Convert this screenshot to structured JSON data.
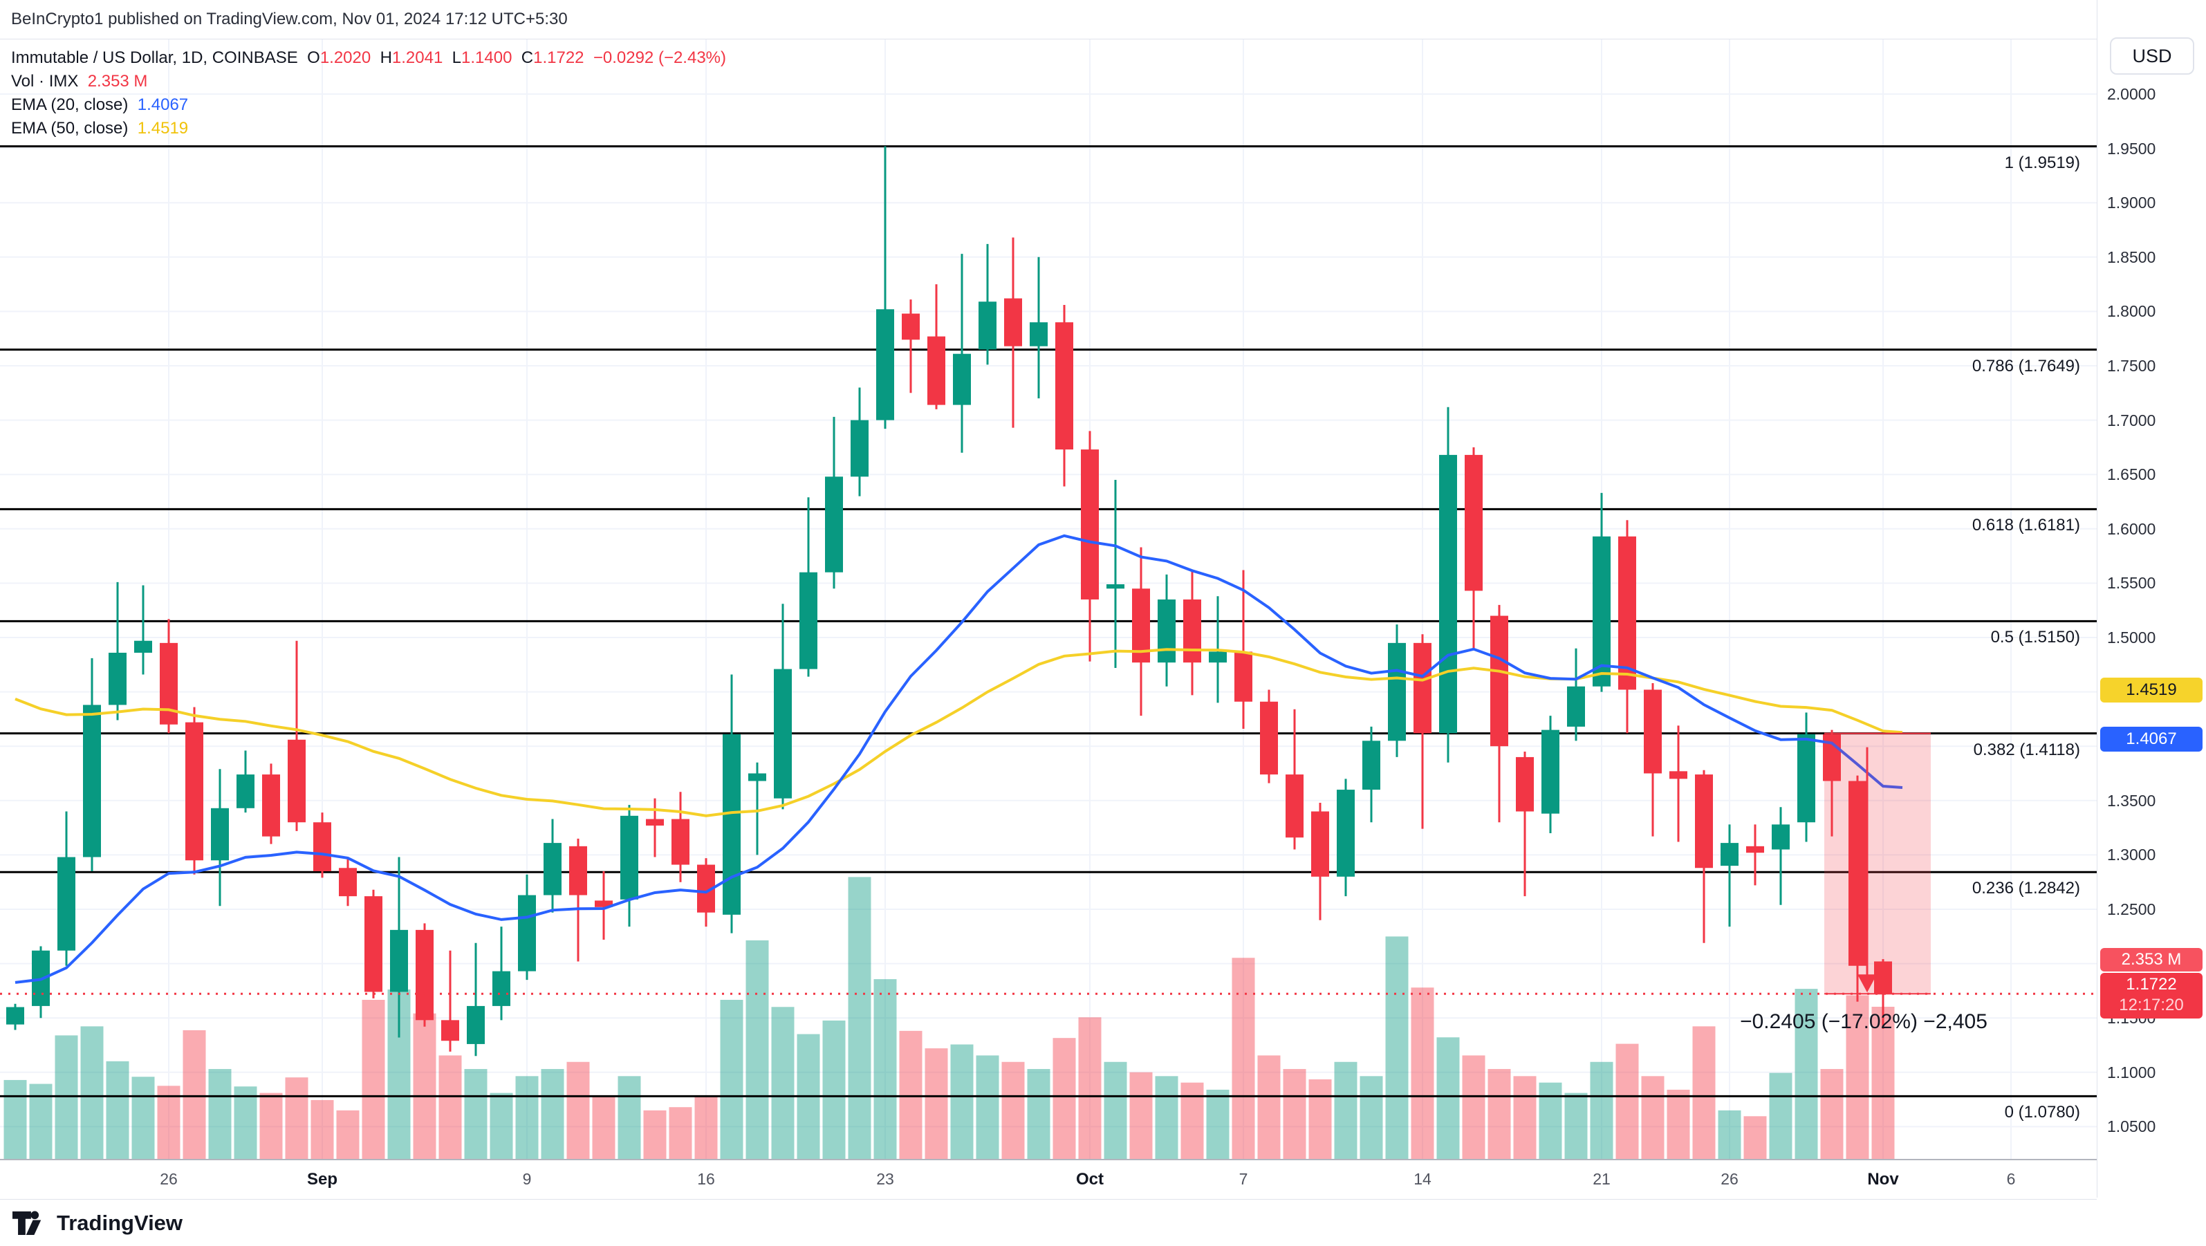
{
  "header": {
    "attribution": "BeInCrypto1 published on TradingView.com, Nov 01, 2024 17:12 UTC+5:30"
  },
  "legend": {
    "symbol": "Immutable / US Dollar, 1D, COINBASE",
    "o_label": "O",
    "o": "1.2020",
    "h_label": "H",
    "h": "1.2041",
    "l_label": "L",
    "l": "1.1400",
    "c_label": "C",
    "c": "1.1722",
    "change": "−0.0292 (−2.43%)",
    "vol_label": "Vol · IMX",
    "vol_value": "2.353 M",
    "ema20_label": "EMA (20, close)",
    "ema20_value": "1.4067",
    "ema50_label": "EMA (50, close)",
    "ema50_value": "1.4519"
  },
  "right_axis": {
    "currency_button": "USD",
    "ticks": [
      "2.0000",
      "1.9500",
      "1.9000",
      "1.8500",
      "1.8000",
      "1.7500",
      "1.7000",
      "1.6500",
      "1.6000",
      "1.5500",
      "1.5000",
      "1.4500",
      "1.4000",
      "1.3500",
      "1.3000",
      "1.2500",
      "1.2000",
      "1.1500",
      "1.1000",
      "1.0500"
    ],
    "badges": {
      "ema50": {
        "text": "1.4519",
        "price": 1.4519,
        "color": "#F6D32B"
      },
      "ema20": {
        "text": "1.4067",
        "price": 1.4067,
        "color": "#2962FF"
      },
      "volume": {
        "text": "2.353 M",
        "color": "#F7525F"
      },
      "last_price": {
        "text": "1.1722",
        "price": 1.1722,
        "countdown": "12:17:20",
        "color": "#F23645"
      }
    }
  },
  "bottom_axis": {
    "ticks": [
      {
        "label": "26",
        "day": 6,
        "bold": false
      },
      {
        "label": "Sep",
        "day": 12,
        "bold": true
      },
      {
        "label": "9",
        "day": 20,
        "bold": false
      },
      {
        "label": "16",
        "day": 27,
        "bold": false
      },
      {
        "label": "23",
        "day": 34,
        "bold": false
      },
      {
        "label": "Oct",
        "day": 42,
        "bold": true
      },
      {
        "label": "7",
        "day": 48,
        "bold": false
      },
      {
        "label": "14",
        "day": 55,
        "bold": false
      },
      {
        "label": "21",
        "day": 62,
        "bold": false
      },
      {
        "label": "26",
        "day": 67,
        "bold": false
      },
      {
        "label": "Nov",
        "day": 73,
        "bold": true
      },
      {
        "label": "6",
        "day": 78,
        "bold": false
      }
    ]
  },
  "logo": {
    "text": "TradingView"
  },
  "chart_data": {
    "type": "candlestick+volume",
    "title": "Immutable / US Dollar, 1D, COINBASE",
    "price_axis": {
      "min_tick": 1.05,
      "max_tick": 2.0,
      "step": 0.05,
      "scale": "linear"
    },
    "grid": true,
    "colors": {
      "up": "#089981",
      "down": "#F23645",
      "vol_up": "rgba(8,153,129,0.42)",
      "vol_down": "rgba(242,54,69,0.42)",
      "ema20": "#2962FF",
      "ema50": "#F5D028",
      "fib_line": "#000000",
      "grid": "#F0F3FA",
      "measure_fill": "rgba(242,54,69,0.22)",
      "last_price_line": "#F23645"
    },
    "ema": {
      "ema20_period": 20,
      "ema20_seed": 1.185,
      "ema50_period": 50,
      "ema50_seed": 1.455
    },
    "fib_levels": [
      {
        "level": "1",
        "price": 1.9519
      },
      {
        "level": "0.786",
        "price": 1.7649
      },
      {
        "level": "0.618",
        "price": 1.6181
      },
      {
        "level": "0.5",
        "price": 1.515
      },
      {
        "level": "0.382",
        "price": 1.4118
      },
      {
        "level": "0.236",
        "price": 1.2842
      },
      {
        "level": "0",
        "price": 1.078
      }
    ],
    "last_price": 1.1722,
    "measure": {
      "from_price": 1.4118,
      "to_price": 1.1722,
      "label": "−0.2405 (−17.02%) −2,405"
    },
    "dates": [
      "2024-08-20",
      "2024-08-21",
      "2024-08-22",
      "2024-08-23",
      "2024-08-24",
      "2024-08-25",
      "2024-08-26",
      "2024-08-27",
      "2024-08-28",
      "2024-08-29",
      "2024-08-30",
      "2024-08-31",
      "2024-09-01",
      "2024-09-02",
      "2024-09-03",
      "2024-09-04",
      "2024-09-05",
      "2024-09-06",
      "2024-09-07",
      "2024-09-08",
      "2024-09-09",
      "2024-09-10",
      "2024-09-11",
      "2024-09-12",
      "2024-09-13",
      "2024-09-14",
      "2024-09-15",
      "2024-09-16",
      "2024-09-17",
      "2024-09-18",
      "2024-09-19",
      "2024-09-20",
      "2024-09-21",
      "2024-09-22",
      "2024-09-23",
      "2024-09-24",
      "2024-09-25",
      "2024-09-26",
      "2024-09-27",
      "2024-09-28",
      "2024-09-29",
      "2024-09-30",
      "2024-10-01",
      "2024-10-02",
      "2024-10-03",
      "2024-10-04",
      "2024-10-05",
      "2024-10-06",
      "2024-10-07",
      "2024-10-08",
      "2024-10-09",
      "2024-10-10",
      "2024-10-11",
      "2024-10-12",
      "2024-10-13",
      "2024-10-14",
      "2024-10-15",
      "2024-10-16",
      "2024-10-17",
      "2024-10-18",
      "2024-10-19",
      "2024-10-20",
      "2024-10-21",
      "2024-10-22",
      "2024-10-23",
      "2024-10-24",
      "2024-10-25",
      "2024-10-26",
      "2024-10-27",
      "2024-10-28",
      "2024-10-29",
      "2024-10-30",
      "2024-10-31",
      "2024-11-01"
    ],
    "ohlc": [
      [
        1.144,
        1.163,
        1.139,
        1.16
      ],
      [
        1.161,
        1.216,
        1.15,
        1.212
      ],
      [
        1.212,
        1.34,
        1.198,
        1.298
      ],
      [
        1.298,
        1.481,
        1.285,
        1.438
      ],
      [
        1.438,
        1.551,
        1.424,
        1.486
      ],
      [
        1.486,
        1.548,
        1.466,
        1.497
      ],
      [
        1.495,
        1.517,
        1.412,
        1.42
      ],
      [
        1.422,
        1.436,
        1.282,
        1.295
      ],
      [
        1.295,
        1.379,
        1.253,
        1.343
      ],
      [
        1.343,
        1.396,
        1.339,
        1.374
      ],
      [
        1.374,
        1.384,
        1.31,
        1.317
      ],
      [
        1.406,
        1.497,
        1.322,
        1.33
      ],
      [
        1.33,
        1.339,
        1.279,
        1.285
      ],
      [
        1.288,
        1.297,
        1.253,
        1.262
      ],
      [
        1.262,
        1.268,
        1.168,
        1.174
      ],
      [
        1.174,
        1.298,
        1.132,
        1.231
      ],
      [
        1.231,
        1.237,
        1.142,
        1.148
      ],
      [
        1.148,
        1.212,
        1.119,
        1.129
      ],
      [
        1.126,
        1.219,
        1.115,
        1.161
      ],
      [
        1.161,
        1.234,
        1.148,
        1.193
      ],
      [
        1.193,
        1.282,
        1.185,
        1.263
      ],
      [
        1.263,
        1.333,
        1.247,
        1.311
      ],
      [
        1.308,
        1.315,
        1.202,
        1.263
      ],
      [
        1.258,
        1.285,
        1.222,
        1.252
      ],
      [
        1.259,
        1.346,
        1.234,
        1.336
      ],
      [
        1.333,
        1.352,
        1.298,
        1.327
      ],
      [
        1.333,
        1.358,
        1.275,
        1.291
      ],
      [
        1.291,
        1.297,
        1.234,
        1.247
      ],
      [
        1.245,
        1.466,
        1.228,
        1.411
      ],
      [
        1.368,
        1.385,
        1.3,
        1.375
      ],
      [
        1.352,
        1.531,
        1.342,
        1.471
      ],
      [
        1.471,
        1.629,
        1.464,
        1.56
      ],
      [
        1.56,
        1.703,
        1.545,
        1.648
      ],
      [
        1.648,
        1.73,
        1.63,
        1.7
      ],
      [
        1.7,
        1.952,
        1.692,
        1.802
      ],
      [
        1.798,
        1.811,
        1.725,
        1.774
      ],
      [
        1.777,
        1.825,
        1.71,
        1.714
      ],
      [
        1.714,
        1.853,
        1.67,
        1.761
      ],
      [
        1.765,
        1.862,
        1.751,
        1.809
      ],
      [
        1.812,
        1.868,
        1.693,
        1.768
      ],
      [
        1.768,
        1.85,
        1.72,
        1.79
      ],
      [
        1.79,
        1.806,
        1.639,
        1.673
      ],
      [
        1.673,
        1.69,
        1.478,
        1.535
      ],
      [
        1.545,
        1.645,
        1.472,
        1.549
      ],
      [
        1.545,
        1.583,
        1.428,
        1.477
      ],
      [
        1.477,
        1.558,
        1.455,
        1.535
      ],
      [
        1.535,
        1.561,
        1.447,
        1.477
      ],
      [
        1.477,
        1.538,
        1.44,
        1.487
      ],
      [
        1.487,
        1.562,
        1.416,
        1.441
      ],
      [
        1.441,
        1.452,
        1.366,
        1.374
      ],
      [
        1.374,
        1.434,
        1.305,
        1.316
      ],
      [
        1.34,
        1.348,
        1.24,
        1.28
      ],
      [
        1.28,
        1.37,
        1.262,
        1.36
      ],
      [
        1.36,
        1.418,
        1.33,
        1.405
      ],
      [
        1.405,
        1.512,
        1.39,
        1.495
      ],
      [
        1.495,
        1.503,
        1.324,
        1.412
      ],
      [
        1.412,
        1.712,
        1.385,
        1.668
      ],
      [
        1.668,
        1.675,
        1.49,
        1.543
      ],
      [
        1.52,
        1.53,
        1.33,
        1.4
      ],
      [
        1.39,
        1.395,
        1.262,
        1.34
      ],
      [
        1.338,
        1.428,
        1.32,
        1.415
      ],
      [
        1.418,
        1.49,
        1.405,
        1.455
      ],
      [
        1.455,
        1.633,
        1.45,
        1.593
      ],
      [
        1.593,
        1.608,
        1.412,
        1.452
      ],
      [
        1.452,
        1.458,
        1.317,
        1.375
      ],
      [
        1.377,
        1.419,
        1.312,
        1.37
      ],
      [
        1.374,
        1.378,
        1.219,
        1.288
      ],
      [
        1.29,
        1.328,
        1.234,
        1.311
      ],
      [
        1.308,
        1.328,
        1.272,
        1.302
      ],
      [
        1.305,
        1.344,
        1.254,
        1.328
      ],
      [
        1.33,
        1.431,
        1.312,
        1.411
      ],
      [
        1.411,
        1.415,
        1.317,
        1.368
      ],
      [
        1.368,
        1.373,
        1.165,
        1.198
      ],
      [
        1.202,
        1.2041,
        1.14,
        1.1722
      ]
    ],
    "volume_m": [
      1.22,
      1.16,
      1.91,
      2.05,
      1.51,
      1.27,
      1.13,
      1.99,
      1.39,
      1.12,
      1.02,
      1.26,
      0.91,
      0.75,
      2.46,
      2.62,
      2.25,
      1.6,
      1.39,
      1.02,
      1.28,
      1.39,
      1.5,
      0.96,
      1.28,
      0.75,
      0.8,
      0.96,
      2.46,
      3.38,
      2.35,
      1.93,
      2.14,
      4.36,
      2.78,
      1.98,
      1.71,
      1.77,
      1.6,
      1.5,
      1.39,
      1.87,
      2.19,
      1.5,
      1.34,
      1.28,
      1.18,
      1.07,
      3.11,
      1.6,
      1.39,
      1.23,
      1.5,
      1.28,
      3.44,
      2.65,
      1.88,
      1.6,
      1.39,
      1.28,
      1.18,
      1.02,
      1.5,
      1.78,
      1.28,
      1.07,
      2.05,
      0.75,
      0.66,
      1.33,
      2.63,
      1.39,
      2.53,
      2.353
    ]
  }
}
